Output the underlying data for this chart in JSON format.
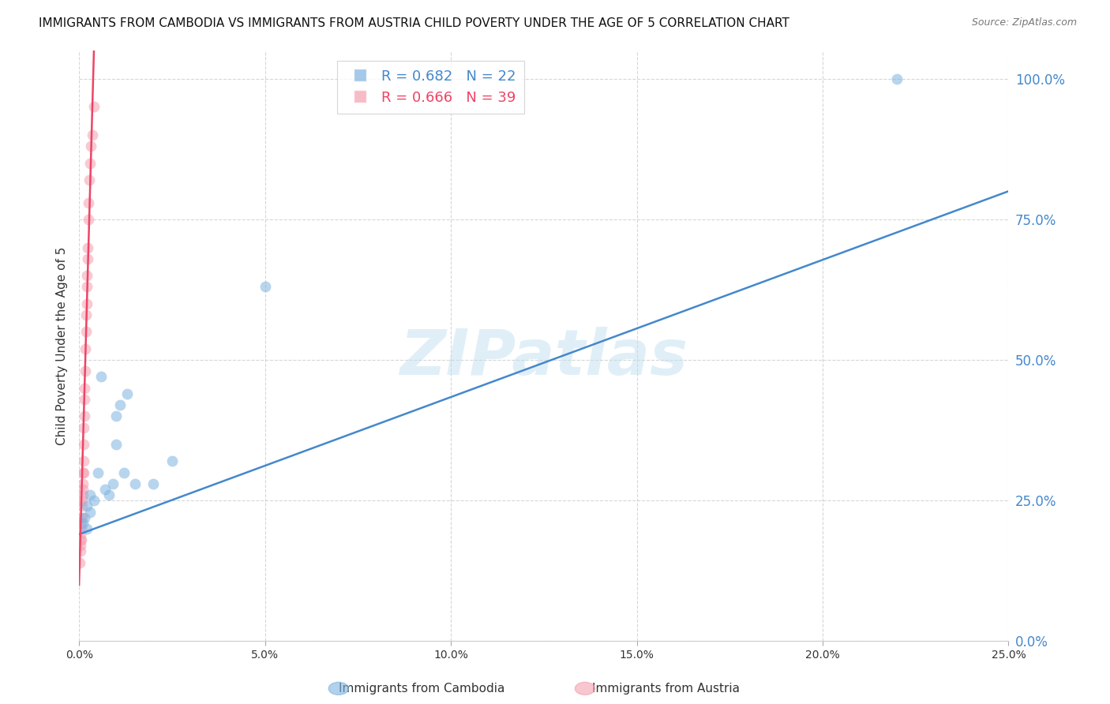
{
  "title": "IMMIGRANTS FROM CAMBODIA VS IMMIGRANTS FROM AUSTRIA CHILD POVERTY UNDER THE AGE OF 5 CORRELATION CHART",
  "source": "Source: ZipAtlas.com",
  "ylabel": "Child Poverty Under the Age of 5",
  "xlim": [
    0.0,
    0.25
  ],
  "ylim": [
    0.0,
    1.05
  ],
  "yticks": [
    0.0,
    0.25,
    0.5,
    0.75,
    1.0
  ],
  "xticks": [
    0.0,
    0.05,
    0.1,
    0.15,
    0.2,
    0.25
  ],
  "background_color": "#ffffff",
  "watermark": "ZIPatlas",
  "legend_blue_R": "0.682",
  "legend_blue_N": "22",
  "legend_pink_R": "0.666",
  "legend_pink_N": "39",
  "blue_color": "#7EB3E0",
  "pink_color": "#F4A0B0",
  "blue_line_color": "#4488CC",
  "pink_line_color": "#EE4466",
  "right_tick_color": "#4488CC",
  "cambodia_x": [
    0.001,
    0.0015,
    0.002,
    0.002,
    0.003,
    0.003,
    0.004,
    0.005,
    0.006,
    0.007,
    0.008,
    0.009,
    0.01,
    0.01,
    0.011,
    0.012,
    0.013,
    0.015,
    0.02,
    0.025,
    0.05,
    0.22
  ],
  "cambodia_y": [
    0.21,
    0.22,
    0.2,
    0.24,
    0.23,
    0.26,
    0.25,
    0.3,
    0.47,
    0.27,
    0.26,
    0.28,
    0.35,
    0.4,
    0.42,
    0.3,
    0.44,
    0.28,
    0.28,
    0.32,
    0.63,
    1.0
  ],
  "austria_x": [
    0.0002,
    0.0003,
    0.0003,
    0.0004,
    0.0005,
    0.0005,
    0.0005,
    0.0006,
    0.0007,
    0.0008,
    0.0008,
    0.0009,
    0.001,
    0.001,
    0.001,
    0.0011,
    0.0012,
    0.0012,
    0.0013,
    0.0013,
    0.0014,
    0.0014,
    0.0015,
    0.0016,
    0.0017,
    0.0018,
    0.0019,
    0.002,
    0.0021,
    0.0022,
    0.0023,
    0.0024,
    0.0025,
    0.0026,
    0.0028,
    0.003,
    0.0032,
    0.0035,
    0.004
  ],
  "austria_y": [
    0.14,
    0.16,
    0.18,
    0.17,
    0.19,
    0.21,
    0.22,
    0.18,
    0.2,
    0.22,
    0.24,
    0.25,
    0.26,
    0.28,
    0.3,
    0.27,
    0.3,
    0.32,
    0.35,
    0.38,
    0.4,
    0.43,
    0.45,
    0.48,
    0.52,
    0.55,
    0.58,
    0.6,
    0.63,
    0.65,
    0.68,
    0.7,
    0.75,
    0.78,
    0.82,
    0.85,
    0.88,
    0.9,
    0.95
  ],
  "blue_line_x": [
    0.0,
    0.25
  ],
  "blue_line_y": [
    0.19,
    0.8
  ],
  "pink_line_x": [
    0.0,
    0.004
  ],
  "pink_line_y": [
    0.1,
    1.05
  ]
}
